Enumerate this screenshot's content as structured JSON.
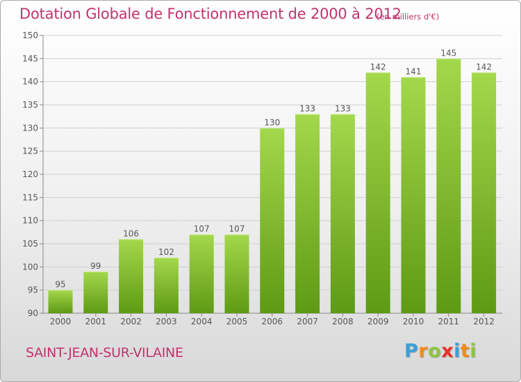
{
  "header": {
    "title": "Dotation Globale de Fonctionnement de 2000 à 2012",
    "subtitle": "(en milliers d'€)"
  },
  "footer": {
    "commune": "SAINT-JEAN-SUR-VILAINE",
    "logo_letters": [
      "P",
      "r",
      "o",
      "x",
      "i",
      "t",
      "i"
    ],
    "logo_colors": [
      "#3aa0d8",
      "#f08a1c",
      "#8cc63f",
      "#e8322a",
      "#3aa0d8",
      "#f08a1c",
      "#8cc63f"
    ]
  },
  "colors": {
    "bar_top": "#a4d84c",
    "bar_bottom": "#5e9a14",
    "accent": "#c0336c"
  },
  "chart_data": {
    "type": "bar",
    "categories": [
      "2000",
      "2001",
      "2002",
      "2003",
      "2004",
      "2005",
      "2006",
      "2007",
      "2008",
      "2009",
      "2010",
      "2011",
      "2012"
    ],
    "values": [
      95,
      99,
      106,
      102,
      107,
      107,
      130,
      133,
      133,
      142,
      141,
      145,
      142
    ],
    "value_labels": [
      "95",
      "99",
      "106",
      "102",
      "107",
      "107",
      "130",
      "133",
      "133",
      "142",
      "141",
      "145",
      "142"
    ],
    "ylim": [
      90,
      150
    ],
    "yticks": [
      90,
      95,
      100,
      105,
      110,
      115,
      120,
      125,
      130,
      135,
      140,
      145,
      150
    ],
    "ytick_labels": [
      "90",
      "95",
      "100",
      "105",
      "110",
      "115",
      "120",
      "125",
      "130",
      "135",
      "140",
      "145",
      "150"
    ],
    "grid": true
  }
}
